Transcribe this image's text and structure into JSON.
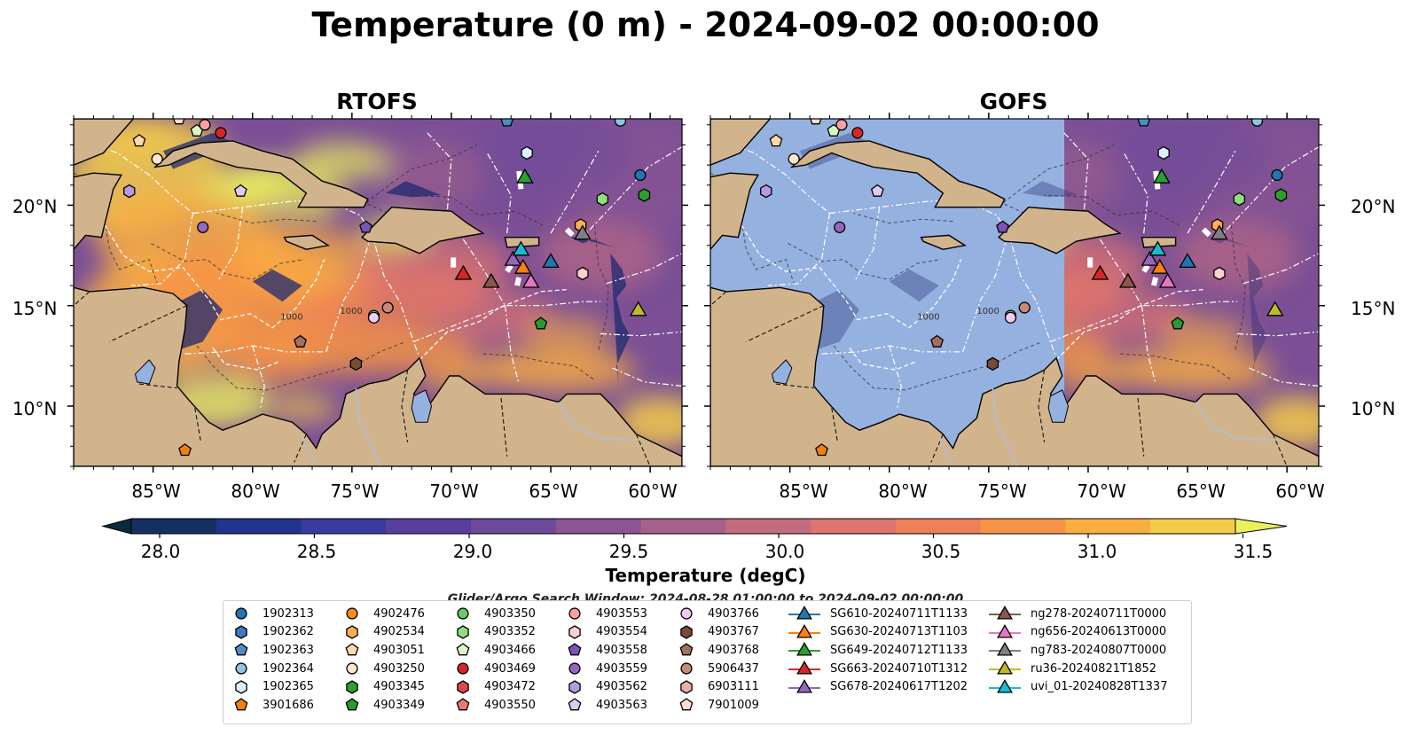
{
  "title": "Temperature (0 m) - 2024-09-02 00:00:00",
  "panels": [
    {
      "title": "RTOFS"
    },
    {
      "title": "GOFS"
    }
  ],
  "lat_labels": [
    "20°N",
    "15°N",
    "10°N"
  ],
  "lon_labels": [
    "85°W",
    "80°W",
    "75°W",
    "70°W",
    "65°W",
    "60°W"
  ],
  "contour_labels": [
    "1000",
    "1000"
  ],
  "colorbar": {
    "label": "Temperature (degC)",
    "ticks": [
      "28.0",
      "28.5",
      "29.0",
      "29.5",
      "30.0",
      "30.5",
      "31.0",
      "31.5"
    ],
    "min": 28.0,
    "max": 31.5,
    "step": 0.25,
    "colors": [
      "#0b2a3b",
      "#14305e",
      "#22358c",
      "#3b3aa0",
      "#583f9e",
      "#6d4a9a",
      "#8a5592",
      "#a5618a",
      "#c26c80",
      "#dd7470",
      "#ed8058",
      "#f59447",
      "#f9ae42",
      "#f4cc4a",
      "#ecef5e"
    ]
  },
  "land_color": "#d2b48c",
  "ocean_color": "#95b1e0",
  "search_window": "Glider/Argo Search Window: 2024-08-28 01:00:00 to 2024-09-02 00:00:00",
  "legend": {
    "columns": [
      [
        {
          "label": "1902313",
          "marker": "circle",
          "color": "#1f77b4"
        },
        {
          "label": "1902362",
          "marker": "hexagon",
          "color": "#3d7ab8"
        },
        {
          "label": "1902363",
          "marker": "pentagon",
          "color": "#4f8cc4"
        },
        {
          "label": "1902364",
          "marker": "circle",
          "color": "#8fc4e6"
        },
        {
          "label": "1902365",
          "marker": "hexagon",
          "color": "#dcefff"
        },
        {
          "label": "3901686",
          "marker": "pentagon",
          "color": "#f08010"
        }
      ],
      [
        {
          "label": "4902476",
          "marker": "circle",
          "color": "#ff8c1a"
        },
        {
          "label": "4902534",
          "marker": "hexagon",
          "color": "#ffae55"
        },
        {
          "label": "4903051",
          "marker": "pentagon",
          "color": "#ffd8a8"
        },
        {
          "label": "4903250",
          "marker": "circle",
          "color": "#ffe8cc"
        },
        {
          "label": "4903345",
          "marker": "hexagon",
          "color": "#2ca02c"
        },
        {
          "label": "4903349",
          "marker": "pentagon",
          "color": "#2a9a2a"
        }
      ],
      [
        {
          "label": "4903350",
          "marker": "circle",
          "color": "#66cc66"
        },
        {
          "label": "4903352",
          "marker": "hexagon",
          "color": "#90dd80"
        },
        {
          "label": "4903466",
          "marker": "pentagon",
          "color": "#d8f8c8"
        },
        {
          "label": "4903469",
          "marker": "circle",
          "color": "#d62728"
        },
        {
          "label": "4903472",
          "marker": "hexagon",
          "color": "#e04848"
        },
        {
          "label": "4903550",
          "marker": "pentagon",
          "color": "#ee7777"
        }
      ],
      [
        {
          "label": "4903553",
          "marker": "circle",
          "color": "#ffa0a0"
        },
        {
          "label": "4903554",
          "marker": "hexagon",
          "color": "#ffd0d0"
        },
        {
          "label": "4903558",
          "marker": "pentagon",
          "color": "#7b52b8"
        },
        {
          "label": "4903559",
          "marker": "circle",
          "color": "#9467bd"
        },
        {
          "label": "4903562",
          "marker": "hexagon",
          "color": "#b59ae0"
        },
        {
          "label": "4903563",
          "marker": "pentagon",
          "color": "#dccbf5"
        }
      ],
      [
        {
          "label": "4903766",
          "marker": "circle",
          "color": "#f0ccf5"
        },
        {
          "label": "4903767",
          "marker": "hexagon",
          "color": "#7a4a35"
        },
        {
          "label": "4903768",
          "marker": "pentagon",
          "color": "#a07060"
        },
        {
          "label": "5906437",
          "marker": "circle",
          "color": "#c88a7a"
        },
        {
          "label": "6903111",
          "marker": "hexagon",
          "color": "#e8b0a0"
        },
        {
          "label": "7901009",
          "marker": "pentagon",
          "color": "#ffddd0"
        }
      ],
      [
        {
          "label": "SG610-20240711T1133",
          "marker": "triangle",
          "color": "#1f77b4"
        },
        {
          "label": "SG630-20240713T1103",
          "marker": "triangle",
          "color": "#ff7f0e"
        },
        {
          "label": "SG649-20240712T1133",
          "marker": "triangle",
          "color": "#2ca02c"
        },
        {
          "label": "SG663-20240710T1312",
          "marker": "triangle",
          "color": "#d62728"
        },
        {
          "label": "SG678-20240617T1202",
          "marker": "triangle",
          "color": "#9467bd"
        }
      ],
      [
        {
          "label": "ng278-20240711T0000",
          "marker": "triangle",
          "color": "#8c564b"
        },
        {
          "label": "ng656-20240613T0000",
          "marker": "triangle",
          "color": "#e377c2"
        },
        {
          "label": "ng783-20240807T0000",
          "marker": "triangle",
          "color": "#7f7f7f"
        },
        {
          "label": "ru36-20240821T1852",
          "marker": "triangle",
          "color": "#bcbd22"
        },
        {
          "label": "uvi_01-20240828T1337",
          "marker": "triangle",
          "color": "#17becf"
        }
      ]
    ]
  },
  "map_markers": [
    {
      "id": "1902313",
      "marker": "circle",
      "color": "#1f77b4",
      "lon": -60.5,
      "lat": 21.5
    },
    {
      "id": "1902363",
      "marker": "pentagon",
      "color": "#4f8cc4",
      "lon": -67.2,
      "lat": 24.2
    },
    {
      "id": "1902364",
      "marker": "circle",
      "color": "#8fc4e6",
      "lon": -61.5,
      "lat": 24.2
    },
    {
      "id": "1902365",
      "marker": "hexagon",
      "color": "#dcefff",
      "lon": -66.2,
      "lat": 22.6
    },
    {
      "id": "3901686",
      "marker": "pentagon",
      "color": "#f08010",
      "lon": -83.4,
      "lat": 7.8
    },
    {
      "id": "4903051",
      "marker": "pentagon",
      "color": "#ffd8a8",
      "lon": -85.7,
      "lat": 23.2
    },
    {
      "id": "4903250",
      "marker": "circle",
      "color": "#ffe8cc",
      "lon": -84.8,
      "lat": 22.3
    },
    {
      "id": "4902534",
      "marker": "hexagon",
      "color": "#ffae55",
      "lon": -63.5,
      "lat": 19.0
    },
    {
      "id": "4903349",
      "marker": "pentagon",
      "color": "#2a9a2a",
      "lon": -65.5,
      "lat": 14.1
    },
    {
      "id": "4903345",
      "marker": "hexagon",
      "color": "#2ca02c",
      "lon": -60.3,
      "lat": 20.5
    },
    {
      "id": "4903352",
      "marker": "hexagon",
      "color": "#90dd80",
      "lon": -62.4,
      "lat": 20.3
    },
    {
      "id": "4903350",
      "marker": "circle",
      "color": "#66cc66",
      "lon": -73.9,
      "lat": 14.5
    },
    {
      "id": "4903466",
      "marker": "pentagon",
      "color": "#d8f8c8",
      "lon": -82.8,
      "lat": 23.7
    },
    {
      "id": "4903469",
      "marker": "circle",
      "color": "#d62728",
      "lon": -81.6,
      "lat": 23.6
    },
    {
      "id": "4903553",
      "marker": "circle",
      "color": "#ffa0a0",
      "lon": -82.4,
      "lat": 24.0
    },
    {
      "id": "4903554",
      "marker": "hexagon",
      "color": "#ffd0d0",
      "lon": -63.4,
      "lat": 16.6
    },
    {
      "id": "4903558",
      "marker": "pentagon",
      "color": "#7b52b8",
      "lon": -74.3,
      "lat": 18.9
    },
    {
      "id": "4903559",
      "marker": "circle",
      "color": "#9467bd",
      "lon": -82.5,
      "lat": 18.9
    },
    {
      "id": "4903562",
      "marker": "hexagon",
      "color": "#b59ae0",
      "lon": -86.2,
      "lat": 20.7
    },
    {
      "id": "4903563",
      "marker": "pentagon",
      "color": "#dccbf5",
      "lon": -80.6,
      "lat": 20.7
    },
    {
      "id": "4903766",
      "marker": "circle",
      "color": "#f0ccf5",
      "lon": -73.9,
      "lat": 14.4
    },
    {
      "id": "4903767",
      "marker": "hexagon",
      "color": "#7a4a35",
      "lon": -74.8,
      "lat": 12.1
    },
    {
      "id": "4903768",
      "marker": "pentagon",
      "color": "#a07060",
      "lon": -77.6,
      "lat": 13.2
    },
    {
      "id": "5906437",
      "marker": "circle",
      "color": "#c88a7a",
      "lon": -73.2,
      "lat": 14.9
    },
    {
      "id": "7901009",
      "marker": "pentagon",
      "color": "#ffddd0",
      "lon": -83.7,
      "lat": 24.3
    },
    {
      "id": "SG610",
      "marker": "triangle",
      "color": "#1f77b4",
      "lon": -65.0,
      "lat": 17.2
    },
    {
      "id": "SG630",
      "marker": "triangle",
      "color": "#ff7f0e",
      "lon": -66.4,
      "lat": 16.9
    },
    {
      "id": "SG649",
      "marker": "triangle",
      "color": "#2ca02c",
      "lon": -66.3,
      "lat": 21.4
    },
    {
      "id": "SG663",
      "marker": "triangle",
      "color": "#d62728",
      "lon": -69.4,
      "lat": 16.6
    },
    {
      "id": "SG678",
      "marker": "triangle",
      "color": "#9467bd",
      "lon": -66.9,
      "lat": 17.3
    },
    {
      "id": "ng278",
      "marker": "triangle",
      "color": "#8c564b",
      "lon": -68.0,
      "lat": 16.2
    },
    {
      "id": "ng656",
      "marker": "triangle",
      "color": "#e377c2",
      "lon": -66.0,
      "lat": 16.2
    },
    {
      "id": "ng783",
      "marker": "triangle",
      "color": "#7f7f7f",
      "lon": -63.4,
      "lat": 18.6
    },
    {
      "id": "ru36",
      "marker": "triangle",
      "color": "#bcbd22",
      "lon": -60.6,
      "lat": 14.8
    },
    {
      "id": "uvi_01",
      "marker": "triangle",
      "color": "#17becf",
      "lon": -66.5,
      "lat": 17.8
    }
  ]
}
